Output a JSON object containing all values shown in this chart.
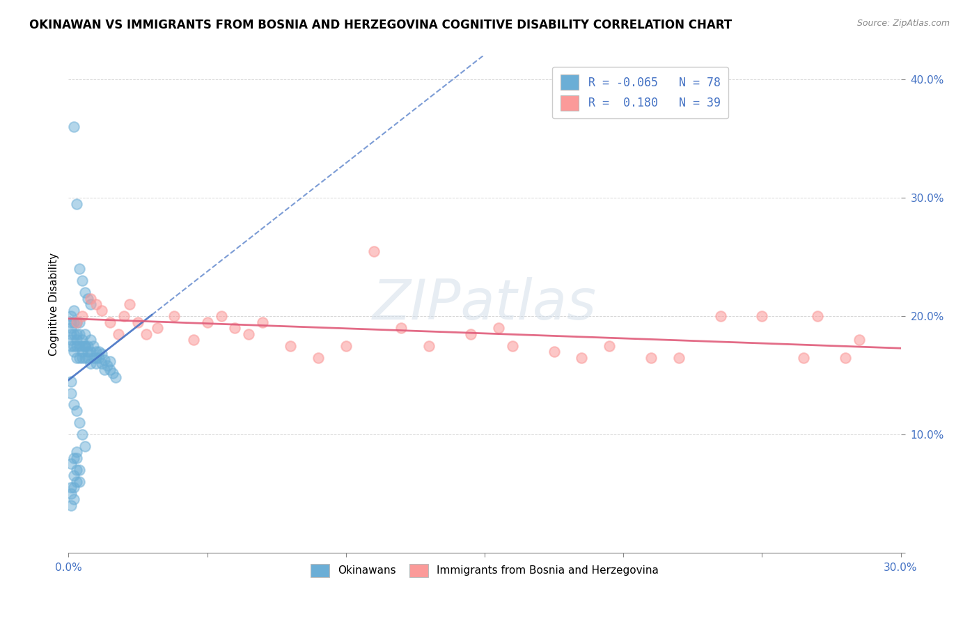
{
  "title": "OKINAWAN VS IMMIGRANTS FROM BOSNIA AND HERZEGOVINA COGNITIVE DISABILITY CORRELATION CHART",
  "source": "Source: ZipAtlas.com",
  "xlabel_legend1": "Okinawans",
  "xlabel_legend2": "Immigrants from Bosnia and Herzegovina",
  "ylabel": "Cognitive Disability",
  "xlim": [
    0.0,
    0.3
  ],
  "ylim": [
    0.0,
    0.42
  ],
  "x_ticks": [
    0.0,
    0.05,
    0.1,
    0.15,
    0.2,
    0.25,
    0.3
  ],
  "x_tick_labels": [
    "0.0%",
    "",
    "",
    "",
    "",
    "",
    "30.0%"
  ],
  "y_ticks": [
    0.0,
    0.1,
    0.2,
    0.3,
    0.4
  ],
  "y_tick_labels": [
    "",
    "10.0%",
    "20.0%",
    "30.0%",
    "40.0%"
  ],
  "R1": -0.065,
  "N1": 78,
  "R2": 0.18,
  "N2": 39,
  "color1": "#6baed6",
  "color2": "#fb9a99",
  "line_color1": "#4472C4",
  "line_color2": "#e05c7a",
  "watermark": "ZIPatlas",
  "ok_x": [
    0.001,
    0.001,
    0.001,
    0.001,
    0.001,
    0.001,
    0.002,
    0.002,
    0.002,
    0.002,
    0.002,
    0.003,
    0.003,
    0.003,
    0.003,
    0.003,
    0.004,
    0.004,
    0.004,
    0.004,
    0.005,
    0.005,
    0.005,
    0.005,
    0.006,
    0.006,
    0.006,
    0.006,
    0.007,
    0.007,
    0.007,
    0.008,
    0.008,
    0.008,
    0.009,
    0.009,
    0.01,
    0.01,
    0.01,
    0.011,
    0.011,
    0.012,
    0.012,
    0.013,
    0.013,
    0.014,
    0.015,
    0.015,
    0.016,
    0.017,
    0.002,
    0.003,
    0.004,
    0.005,
    0.006,
    0.007,
    0.008,
    0.001,
    0.001,
    0.002,
    0.003,
    0.004,
    0.005,
    0.006,
    0.003,
    0.004,
    0.001,
    0.002,
    0.003,
    0.001,
    0.002,
    0.001,
    0.002,
    0.003,
    0.004,
    0.001,
    0.002,
    0.003
  ],
  "ok_y": [
    0.185,
    0.19,
    0.195,
    0.2,
    0.175,
    0.18,
    0.185,
    0.195,
    0.205,
    0.175,
    0.17,
    0.185,
    0.195,
    0.175,
    0.165,
    0.18,
    0.185,
    0.175,
    0.165,
    0.195,
    0.18,
    0.17,
    0.165,
    0.175,
    0.185,
    0.175,
    0.165,
    0.175,
    0.17,
    0.165,
    0.175,
    0.18,
    0.17,
    0.16,
    0.175,
    0.165,
    0.17,
    0.165,
    0.16,
    0.17,
    0.165,
    0.168,
    0.16,
    0.163,
    0.155,
    0.158,
    0.155,
    0.162,
    0.152,
    0.148,
    0.36,
    0.295,
    0.24,
    0.23,
    0.22,
    0.215,
    0.21,
    0.145,
    0.135,
    0.125,
    0.12,
    0.11,
    0.1,
    0.09,
    0.08,
    0.07,
    0.055,
    0.065,
    0.06,
    0.05,
    0.045,
    0.075,
    0.08,
    0.085,
    0.06,
    0.04,
    0.055,
    0.07
  ],
  "bos_x": [
    0.003,
    0.005,
    0.008,
    0.01,
    0.012,
    0.015,
    0.018,
    0.02,
    0.022,
    0.025,
    0.028,
    0.032,
    0.038,
    0.045,
    0.05,
    0.055,
    0.06,
    0.065,
    0.07,
    0.08,
    0.09,
    0.1,
    0.11,
    0.12,
    0.13,
    0.145,
    0.155,
    0.16,
    0.175,
    0.185,
    0.195,
    0.21,
    0.22,
    0.235,
    0.25,
    0.265,
    0.27,
    0.28,
    0.285
  ],
  "bos_y": [
    0.195,
    0.2,
    0.215,
    0.21,
    0.205,
    0.195,
    0.185,
    0.2,
    0.21,
    0.195,
    0.185,
    0.19,
    0.2,
    0.18,
    0.195,
    0.2,
    0.19,
    0.185,
    0.195,
    0.175,
    0.165,
    0.175,
    0.255,
    0.19,
    0.175,
    0.185,
    0.19,
    0.175,
    0.17,
    0.165,
    0.175,
    0.165,
    0.165,
    0.2,
    0.2,
    0.165,
    0.2,
    0.165,
    0.18
  ]
}
